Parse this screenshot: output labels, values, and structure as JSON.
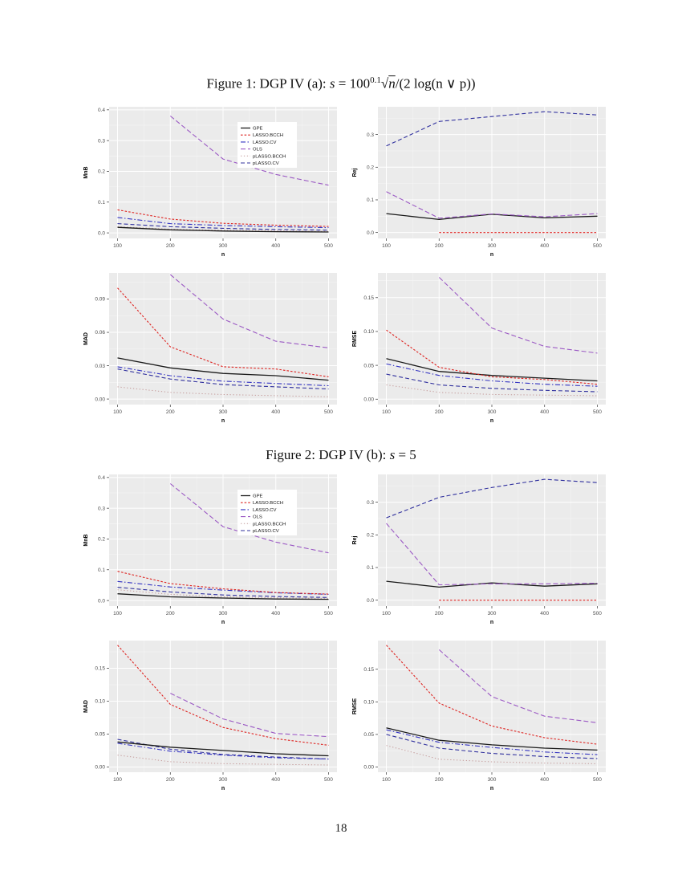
{
  "page": {
    "number": "18"
  },
  "captions": {
    "fig1": {
      "prefix": "Figure 1: DGP IV (a): ",
      "var": "s",
      "eq": " = 100",
      "sup": "0.1",
      "sqrt": "√",
      "sqrt_arg": "n",
      "rest": "/(2 log(n ∨ p))"
    },
    "fig2": {
      "prefix": "Figure 2: DGP IV (b): ",
      "var": "s",
      "rest": " = 5"
    }
  },
  "legend": {
    "entries": [
      "GPE",
      "LASSO.BCCH",
      "LASSO.CV",
      "OLS",
      "pLASSO.BCCH",
      "pLASSO.CV"
    ]
  },
  "series_styles": {
    "GPE": {
      "color": "#1a1a1a",
      "dash": "",
      "width": 1.3
    },
    "LASSO.BCCH": {
      "color": "#de2421",
      "dash": "2.6,2",
      "width": 1.1
    },
    "LASSO.CV": {
      "color": "#3434c2",
      "dash": "6,2.5,1.5,2.5",
      "width": 1.1
    },
    "OLS": {
      "color": "#9b59c4",
      "dash": "6,3",
      "width": 1.1
    },
    "pLASSO.BCCH": {
      "color": "#c49a9a",
      "dash": "1.3,2.6",
      "width": 1.0
    },
    "pLASSO.CV": {
      "color": "#30309e",
      "dash": "5,3",
      "width": 1.1
    }
  },
  "theme": {
    "panel_bg": "#ebebeb",
    "grid_major": "#ffffff",
    "grid_minor": "#f5f5f5",
    "tick_text": "#4d4d4d",
    "axis_text": "#000000"
  },
  "chart_data": [
    {
      "type": "line",
      "figure": 1,
      "ylabel": "MnB",
      "xlabel": "n",
      "legend": true,
      "xlim": [
        84,
        516
      ],
      "xticks": [
        100,
        200,
        300,
        400,
        500
      ],
      "xtick_labels": [
        "100",
        "200",
        "300",
        "400",
        "500"
      ],
      "ylim": [
        -0.018,
        0.41
      ],
      "yticks": [
        0,
        0.1,
        0.2,
        0.3,
        0.4
      ],
      "ytick_labels": [
        "0.0",
        "0.1",
        "0.2",
        "0.3",
        "0.4"
      ],
      "series": [
        {
          "name": "pLASSO.BCCH",
          "x": [
            100,
            200,
            300,
            400,
            500
          ],
          "y": [
            0.02,
            0.012,
            0.009,
            0.007,
            0.005
          ]
        },
        {
          "name": "pLASSO.CV",
          "x": [
            100,
            200,
            300,
            400,
            500
          ],
          "y": [
            0.03,
            0.02,
            0.015,
            0.011,
            0.009
          ]
        },
        {
          "name": "LASSO.CV",
          "x": [
            100,
            200,
            300,
            400,
            500
          ],
          "y": [
            0.05,
            0.03,
            0.024,
            0.02,
            0.017
          ]
        },
        {
          "name": "GPE",
          "x": [
            100,
            200,
            300,
            400,
            500
          ],
          "y": [
            0.018,
            0.01,
            0.006,
            0.004,
            0.003
          ]
        },
        {
          "name": "LASSO.BCCH",
          "x": [
            100,
            200,
            300,
            400,
            500
          ],
          "y": [
            0.075,
            0.045,
            0.031,
            0.025,
            0.021
          ]
        },
        {
          "name": "OLS",
          "x": [
            200,
            300,
            400,
            500
          ],
          "y": [
            0.38,
            0.24,
            0.19,
            0.155
          ]
        }
      ]
    },
    {
      "type": "line",
      "figure": 1,
      "ylabel": "Rej",
      "xlabel": "n",
      "legend": false,
      "xlim": [
        84,
        516
      ],
      "xticks": [
        100,
        200,
        300,
        400,
        500
      ],
      "xtick_labels": [
        "100",
        "200",
        "300",
        "400",
        "500"
      ],
      "ylim": [
        -0.018,
        0.385
      ],
      "yticks": [
        0,
        0.1,
        0.2,
        0.3
      ],
      "ytick_labels": [
        "0.0",
        "0.1",
        "0.2",
        "0.3"
      ],
      "series": [
        {
          "name": "LASSO.BCCH",
          "x": [
            200,
            300,
            400,
            500
          ],
          "y": [
            0.0,
            0.0,
            0.0,
            0.0
          ]
        },
        {
          "name": "pLASSO.CV",
          "x": [
            100,
            200,
            300,
            400,
            500
          ],
          "y": [
            0.265,
            0.34,
            0.355,
            0.37,
            0.36
          ]
        },
        {
          "name": "GPE",
          "x": [
            100,
            200,
            300,
            400,
            500
          ],
          "y": [
            0.058,
            0.04,
            0.056,
            0.045,
            0.05
          ]
        },
        {
          "name": "OLS",
          "x": [
            100,
            200,
            300,
            400,
            500
          ],
          "y": [
            0.125,
            0.044,
            0.057,
            0.048,
            0.058
          ]
        }
      ]
    },
    {
      "type": "line",
      "figure": 1,
      "ylabel": "MAD",
      "xlabel": "n",
      "legend": false,
      "xlim": [
        84,
        516
      ],
      "xticks": [
        100,
        200,
        300,
        400,
        500
      ],
      "xtick_labels": [
        "100",
        "200",
        "300",
        "400",
        "500"
      ],
      "ylim": [
        -0.005,
        0.1135
      ],
      "yticks": [
        0,
        0.03,
        0.06,
        0.09
      ],
      "ytick_labels": [
        "0.00",
        "0.03",
        "0.06",
        "0.09"
      ],
      "series": [
        {
          "name": "pLASSO.BCCH",
          "x": [
            100,
            200,
            300,
            400,
            500
          ],
          "y": [
            0.011,
            0.006,
            0.004,
            0.003,
            0.002
          ]
        },
        {
          "name": "pLASSO.CV",
          "x": [
            100,
            200,
            300,
            400,
            500
          ],
          "y": [
            0.027,
            0.018,
            0.013,
            0.011,
            0.009
          ]
        },
        {
          "name": "LASSO.CV",
          "x": [
            100,
            200,
            300,
            400,
            500
          ],
          "y": [
            0.029,
            0.021,
            0.016,
            0.014,
            0.012
          ]
        },
        {
          "name": "GPE",
          "x": [
            100,
            200,
            300,
            400,
            500
          ],
          "y": [
            0.037,
            0.028,
            0.023,
            0.021,
            0.017
          ]
        },
        {
          "name": "LASSO.BCCH",
          "x": [
            100,
            200,
            300,
            400,
            500
          ],
          "y": [
            0.1,
            0.047,
            0.029,
            0.027,
            0.02
          ]
        },
        {
          "name": "OLS",
          "x": [
            200,
            300,
            400,
            500
          ],
          "y": [
            0.112,
            0.072,
            0.052,
            0.046
          ]
        }
      ]
    },
    {
      "type": "line",
      "figure": 1,
      "ylabel": "RMSE",
      "xlabel": "n",
      "legend": false,
      "xlim": [
        84,
        516
      ],
      "xticks": [
        100,
        200,
        300,
        400,
        500
      ],
      "xtick_labels": [
        "100",
        "200",
        "300",
        "400",
        "500"
      ],
      "ylim": [
        -0.008,
        0.1865
      ],
      "yticks": [
        0,
        0.05,
        0.1,
        0.15
      ],
      "ytick_labels": [
        "0.00",
        "0.05",
        "0.10",
        "0.15"
      ],
      "series": [
        {
          "name": "pLASSO.BCCH",
          "x": [
            100,
            200,
            300,
            400,
            500
          ],
          "y": [
            0.021,
            0.01,
            0.007,
            0.006,
            0.005
          ]
        },
        {
          "name": "pLASSO.CV",
          "x": [
            100,
            200,
            300,
            400,
            500
          ],
          "y": [
            0.037,
            0.021,
            0.016,
            0.013,
            0.011
          ]
        },
        {
          "name": "LASSO.CV",
          "x": [
            100,
            200,
            300,
            400,
            500
          ],
          "y": [
            0.052,
            0.035,
            0.027,
            0.022,
            0.019
          ]
        },
        {
          "name": "GPE",
          "x": [
            100,
            200,
            300,
            400,
            500
          ],
          "y": [
            0.06,
            0.041,
            0.035,
            0.031,
            0.027
          ]
        },
        {
          "name": "LASSO.BCCH",
          "x": [
            100,
            200,
            300,
            400,
            500
          ],
          "y": [
            0.102,
            0.047,
            0.033,
            0.029,
            0.022
          ]
        },
        {
          "name": "OLS",
          "x": [
            200,
            300,
            400,
            500
          ],
          "y": [
            0.18,
            0.105,
            0.078,
            0.068
          ]
        }
      ]
    },
    {
      "type": "line",
      "figure": 2,
      "ylabel": "MnB",
      "xlabel": "n",
      "legend": true,
      "xlim": [
        84,
        516
      ],
      "xticks": [
        100,
        200,
        300,
        400,
        500
      ],
      "xtick_labels": [
        "100",
        "200",
        "300",
        "400",
        "500"
      ],
      "ylim": [
        -0.018,
        0.41
      ],
      "yticks": [
        0,
        0.1,
        0.2,
        0.3,
        0.4
      ],
      "ytick_labels": [
        "0.0",
        "0.1",
        "0.2",
        "0.3",
        "0.4"
      ],
      "series": [
        {
          "name": "pLASSO.BCCH",
          "x": [
            100,
            200,
            300,
            400,
            500
          ],
          "y": [
            0.035,
            0.02,
            0.012,
            0.009,
            0.007
          ]
        },
        {
          "name": "pLASSO.CV",
          "x": [
            100,
            200,
            300,
            400,
            500
          ],
          "y": [
            0.043,
            0.028,
            0.018,
            0.013,
            0.01
          ]
        },
        {
          "name": "LASSO.CV",
          "x": [
            100,
            200,
            300,
            400,
            500
          ],
          "y": [
            0.062,
            0.044,
            0.034,
            0.025,
            0.02
          ]
        },
        {
          "name": "GPE",
          "x": [
            100,
            200,
            300,
            400,
            500
          ],
          "y": [
            0.022,
            0.012,
            0.008,
            0.005,
            0.004
          ]
        },
        {
          "name": "LASSO.BCCH",
          "x": [
            100,
            200,
            300,
            400,
            500
          ],
          "y": [
            0.095,
            0.055,
            0.038,
            0.026,
            0.021
          ]
        },
        {
          "name": "OLS",
          "x": [
            200,
            300,
            400,
            500
          ],
          "y": [
            0.38,
            0.24,
            0.19,
            0.155
          ]
        }
      ]
    },
    {
      "type": "line",
      "figure": 2,
      "ylabel": "Rej",
      "xlabel": "n",
      "legend": false,
      "xlim": [
        84,
        516
      ],
      "xticks": [
        100,
        200,
        300,
        400,
        500
      ],
      "xtick_labels": [
        "100",
        "200",
        "300",
        "400",
        "500"
      ],
      "ylim": [
        -0.018,
        0.385
      ],
      "yticks": [
        0,
        0.1,
        0.2,
        0.3
      ],
      "ytick_labels": [
        "0.0",
        "0.1",
        "0.2",
        "0.3"
      ],
      "series": [
        {
          "name": "LASSO.BCCH",
          "x": [
            200,
            300,
            400,
            500
          ],
          "y": [
            0.0,
            0.0,
            0.0,
            0.0
          ]
        },
        {
          "name": "pLASSO.CV",
          "x": [
            100,
            200,
            300,
            400,
            500
          ],
          "y": [
            0.252,
            0.315,
            0.345,
            0.37,
            0.36
          ]
        },
        {
          "name": "GPE",
          "x": [
            100,
            200,
            300,
            400,
            500
          ],
          "y": [
            0.058,
            0.04,
            0.053,
            0.043,
            0.05
          ]
        },
        {
          "name": "OLS",
          "x": [
            100,
            200,
            300,
            400,
            500
          ],
          "y": [
            0.235,
            0.047,
            0.05,
            0.05,
            0.052
          ]
        }
      ]
    },
    {
      "type": "line",
      "figure": 2,
      "ylabel": "MAD",
      "xlabel": "n",
      "legend": false,
      "xlim": [
        84,
        516
      ],
      "xticks": [
        100,
        200,
        300,
        400,
        500
      ],
      "xtick_labels": [
        "100",
        "200",
        "300",
        "400",
        "500"
      ],
      "ylim": [
        -0.008,
        0.192
      ],
      "yticks": [
        0,
        0.05,
        0.1,
        0.15
      ],
      "ytick_labels": [
        "0.00",
        "0.05",
        "0.10",
        "0.15"
      ],
      "series": [
        {
          "name": "pLASSO.BCCH",
          "x": [
            100,
            200,
            300,
            400,
            500
          ],
          "y": [
            0.018,
            0.008,
            0.005,
            0.004,
            0.003
          ]
        },
        {
          "name": "pLASSO.CV",
          "x": [
            100,
            200,
            300,
            400,
            500
          ],
          "y": [
            0.042,
            0.027,
            0.019,
            0.015,
            0.012
          ]
        },
        {
          "name": "LASSO.CV",
          "x": [
            100,
            200,
            300,
            400,
            500
          ],
          "y": [
            0.036,
            0.024,
            0.018,
            0.014,
            0.012
          ]
        },
        {
          "name": "GPE",
          "x": [
            100,
            200,
            300,
            400,
            500
          ],
          "y": [
            0.038,
            0.03,
            0.025,
            0.02,
            0.017
          ]
        },
        {
          "name": "LASSO.BCCH",
          "x": [
            100,
            200,
            300,
            400,
            500
          ],
          "y": [
            0.185,
            0.095,
            0.06,
            0.043,
            0.033
          ]
        },
        {
          "name": "OLS",
          "x": [
            200,
            300,
            400,
            500
          ],
          "y": [
            0.112,
            0.073,
            0.051,
            0.046
          ]
        }
      ]
    },
    {
      "type": "line",
      "figure": 2,
      "ylabel": "RMSE",
      "xlabel": "n",
      "legend": false,
      "xlim": [
        84,
        516
      ],
      "xticks": [
        100,
        200,
        300,
        400,
        500
      ],
      "xtick_labels": [
        "100",
        "200",
        "300",
        "400",
        "500"
      ],
      "ylim": [
        -0.008,
        0.194
      ],
      "yticks": [
        0,
        0.05,
        0.1,
        0.15
      ],
      "ytick_labels": [
        "0.00",
        "0.05",
        "0.10",
        "0.15"
      ],
      "series": [
        {
          "name": "pLASSO.BCCH",
          "x": [
            100,
            200,
            300,
            400,
            500
          ],
          "y": [
            0.033,
            0.012,
            0.008,
            0.006,
            0.005
          ]
        },
        {
          "name": "pLASSO.CV",
          "x": [
            100,
            200,
            300,
            400,
            500
          ],
          "y": [
            0.05,
            0.029,
            0.021,
            0.016,
            0.013
          ]
        },
        {
          "name": "LASSO.CV",
          "x": [
            100,
            200,
            300,
            400,
            500
          ],
          "y": [
            0.057,
            0.038,
            0.03,
            0.023,
            0.019
          ]
        },
        {
          "name": "GPE",
          "x": [
            100,
            200,
            300,
            400,
            500
          ],
          "y": [
            0.06,
            0.041,
            0.034,
            0.029,
            0.026
          ]
        },
        {
          "name": "LASSO.BCCH",
          "x": [
            100,
            200,
            300,
            400,
            500
          ],
          "y": [
            0.187,
            0.098,
            0.063,
            0.045,
            0.035
          ]
        },
        {
          "name": "OLS",
          "x": [
            200,
            300,
            400,
            500
          ],
          "y": [
            0.18,
            0.108,
            0.078,
            0.068
          ]
        }
      ]
    }
  ]
}
